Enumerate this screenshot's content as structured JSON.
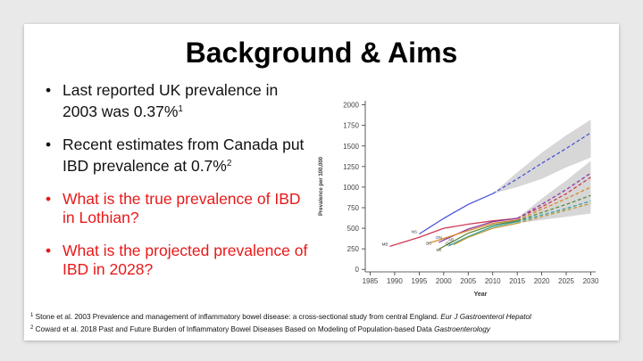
{
  "slide": {
    "title": "Background & Aims",
    "bullets": [
      {
        "text": "Last reported UK prevalence in 2003 was 0.37%",
        "sup": "1",
        "color": "#111111"
      },
      {
        "text": "Recent estimates from Canada put IBD prevalence at 0.7%",
        "sup": "2",
        "color": "#111111"
      },
      {
        "text": "What is the true prevalence of IBD in Lothian?",
        "sup": "",
        "color": "#e8191a"
      },
      {
        "text": "What is the projected prevalence of IBD in 2028?",
        "sup": "",
        "color": "#e8191a"
      }
    ],
    "references": [
      {
        "num": "1",
        "text": " Stone et al. 2003 Prevalence and management of inflammatory bowel disease: a cross-sectional study from central England. ",
        "journal": "Eur J Gastroenterol Hepatol"
      },
      {
        "num": "2",
        "text": "  Coward et al. 2018 Past and Future Burden of Inflammatory Bowel Diseases Based on Modeling of Population-based Data ",
        "journal": "Gastroenterology"
      }
    ]
  },
  "chart_data": {
    "type": "line",
    "xlabel": "Year",
    "ylabel": "Prevalence per 100,000",
    "xlim": [
      1984,
      2031
    ],
    "ylim": [
      -30,
      2050
    ],
    "xticks": [
      1985,
      1990,
      1995,
      2000,
      2005,
      2010,
      2015,
      2020,
      2025,
      2030
    ],
    "yticks": [
      0,
      250,
      500,
      750,
      1000,
      1250,
      1500,
      1750,
      2000
    ],
    "grid": false,
    "legend": "none",
    "series": [
      {
        "name": "NS",
        "color": "#4a55d8",
        "observed": [
          [
            1995,
            430
          ],
          [
            2000,
            620
          ],
          [
            2005,
            790
          ],
          [
            2010,
            920
          ]
        ],
        "projected": [
          [
            2010,
            920
          ],
          [
            2015,
            1100
          ],
          [
            2020,
            1290
          ],
          [
            2025,
            1470
          ],
          [
            2030,
            1660
          ]
        ],
        "band_lower": [
          [
            2010,
            920
          ],
          [
            2015,
            1000
          ],
          [
            2020,
            1100
          ],
          [
            2025,
            1240
          ],
          [
            2030,
            1360
          ]
        ],
        "band_upper": [
          [
            2010,
            920
          ],
          [
            2015,
            1180
          ],
          [
            2020,
            1420
          ],
          [
            2025,
            1630
          ],
          [
            2030,
            1820
          ]
        ]
      },
      {
        "name": "MB",
        "color": "#d03a52",
        "observed": [
          [
            1989,
            280
          ],
          [
            1995,
            390
          ],
          [
            2000,
            500
          ],
          [
            2005,
            550
          ],
          [
            2010,
            590
          ],
          [
            2015,
            620
          ]
        ],
        "projected": [
          [
            2015,
            620
          ],
          [
            2020,
            760
          ],
          [
            2025,
            920
          ],
          [
            2030,
            1120
          ]
        ]
      },
      {
        "name": "ON",
        "color": "#8a3aa8",
        "observed": [
          [
            1999,
            330
          ],
          [
            2005,
            490
          ],
          [
            2010,
            580
          ],
          [
            2015,
            620
          ]
        ],
        "projected": [
          [
            2015,
            620
          ],
          [
            2020,
            790
          ],
          [
            2025,
            970
          ],
          [
            2030,
            1170
          ]
        ]
      },
      {
        "name": "BC",
        "color": "#d98a2b",
        "observed": [
          [
            1997,
            320
          ],
          [
            2005,
            470
          ],
          [
            2010,
            560
          ],
          [
            2015,
            600
          ]
        ],
        "projected": [
          [
            2015,
            600
          ],
          [
            2020,
            730
          ],
          [
            2025,
            860
          ],
          [
            2030,
            1000
          ]
        ]
      },
      {
        "name": "SK",
        "color": "#5a8a3a",
        "observed": [
          [
            1999,
            245
          ],
          [
            2005,
            440
          ],
          [
            2010,
            540
          ],
          [
            2015,
            590
          ]
        ],
        "projected": [
          [
            2015,
            590
          ],
          [
            2020,
            690
          ],
          [
            2025,
            790
          ],
          [
            2030,
            900
          ]
        ]
      },
      {
        "name": "QC",
        "color": "#3aa0a0",
        "observed": [
          [
            2001,
            285
          ],
          [
            2005,
            400
          ],
          [
            2010,
            520
          ],
          [
            2015,
            580
          ]
        ],
        "projected": [
          [
            2015,
            580
          ],
          [
            2020,
            660
          ],
          [
            2025,
            740
          ],
          [
            2030,
            830
          ]
        ]
      },
      {
        "name": "AB",
        "color": "#b89a3a",
        "observed": [
          [
            2002,
            300
          ],
          [
            2005,
            390
          ],
          [
            2010,
            500
          ],
          [
            2015,
            560
          ]
        ],
        "projected": [
          [
            2015,
            560
          ],
          [
            2020,
            640
          ],
          [
            2025,
            720
          ],
          [
            2030,
            800
          ]
        ]
      }
    ],
    "lower_band": {
      "lower": [
        [
          2015,
          560
        ],
        [
          2020,
          600
        ],
        [
          2025,
          640
        ],
        [
          2030,
          680
        ]
      ],
      "upper": [
        [
          2015,
          620
        ],
        [
          2020,
          860
        ],
        [
          2025,
          1080
        ],
        [
          2030,
          1320
        ]
      ]
    },
    "series_labels": [
      {
        "text": "MB",
        "x": 1988,
        "y": 290
      },
      {
        "text": "NS",
        "x": 1994,
        "y": 440
      },
      {
        "text": "ON",
        "x": 1999,
        "y": 370
      },
      {
        "text": "BC",
        "x": 1997,
        "y": 300
      },
      {
        "text": "SK",
        "x": 1999,
        "y": 220
      },
      {
        "text": "AB",
        "x": 2001.5,
        "y": 345
      },
      {
        "text": "QC",
        "x": 2001,
        "y": 300
      }
    ]
  }
}
